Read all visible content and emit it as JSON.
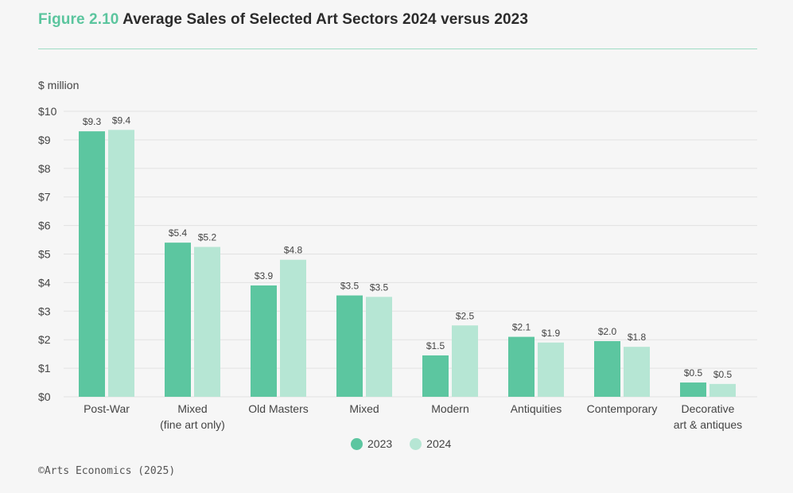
{
  "header": {
    "figure_label": "Figure 2.10",
    "title": "Average Sales of Selected Art Sectors 2024 versus 2023"
  },
  "source": "©Arts Economics (2025)",
  "colors": {
    "s2023": "#5cc6a0",
    "s2024": "#b6e6d4",
    "grid": "#e2e2e2",
    "accent": "#5bc59e"
  },
  "chart_data": {
    "type": "bar",
    "ylabel": "$ million",
    "ylim": [
      0,
      10
    ],
    "yticks": [
      "$0",
      "$1",
      "$2",
      "$3",
      "$4",
      "$5",
      "$6",
      "$7",
      "$8",
      "$9",
      "$10"
    ],
    "grid": true,
    "legend_position": "bottom-center",
    "categories": [
      [
        "Post-War"
      ],
      [
        "Mixed",
        "(fine art only)"
      ],
      [
        "Old Masters"
      ],
      [
        "Mixed"
      ],
      [
        "Modern"
      ],
      [
        "Antiquities"
      ],
      [
        "Contemporary"
      ],
      [
        "Decorative",
        "art & antiques"
      ]
    ],
    "series": [
      {
        "name": "2023",
        "values": [
          9.3,
          5.4,
          3.9,
          3.55,
          1.45,
          2.1,
          1.95,
          0.5
        ],
        "labels": [
          "$9.3",
          "$5.4",
          "$3.9",
          "$3.5",
          "$1.5",
          "$2.1",
          "$2.0",
          "$0.5"
        ]
      },
      {
        "name": "2024",
        "values": [
          9.35,
          5.25,
          4.8,
          3.5,
          2.5,
          1.9,
          1.75,
          0.45
        ],
        "labels": [
          "$9.4",
          "$5.2",
          "$4.8",
          "$3.5",
          "$2.5",
          "$1.9",
          "$1.8",
          "$0.5"
        ]
      }
    ]
  }
}
